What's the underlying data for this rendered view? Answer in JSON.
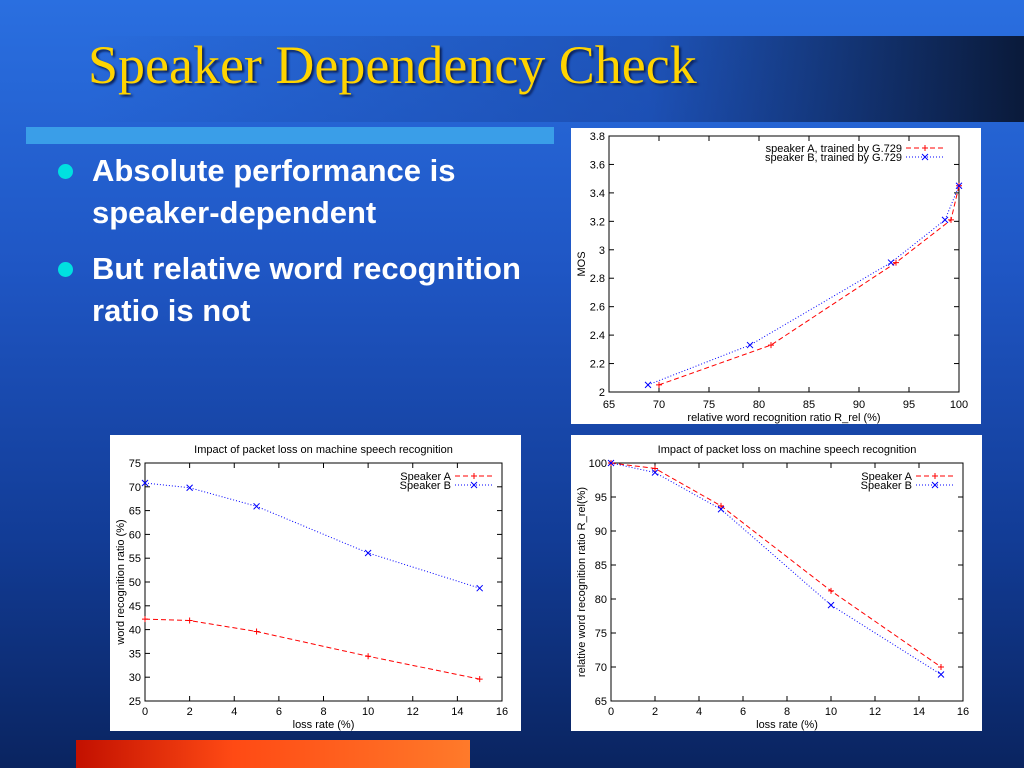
{
  "slide": {
    "title": "Speaker Dependency Check",
    "bullets": [
      "Absolute performance is speaker-dependent",
      "But relative word recognition ratio is not"
    ]
  },
  "colors": {
    "title": "#ffd400",
    "bullet_dot": "#00e0e0",
    "series_a": "#ff0000",
    "series_b": "#0000ff"
  },
  "chart_data": [
    {
      "type": "line",
      "title": "",
      "xlabel": "relative word recognition ratio R_rel (%)",
      "ylabel": "MOS",
      "xlim": [
        65,
        100
      ],
      "ylim": [
        2,
        3.8
      ],
      "xticks": [
        65,
        70,
        75,
        80,
        85,
        90,
        95,
        100
      ],
      "yticks": [
        2,
        2.2,
        2.4,
        2.6,
        2.8,
        3,
        3.2,
        3.4,
        3.6,
        3.8
      ],
      "grid": false,
      "legend_position": "top-right",
      "series": [
        {
          "name": "speaker A, trained by G.729",
          "color": "#ff0000",
          "marker": "+",
          "dash": "dashed",
          "points": [
            [
              70,
              2.05
            ],
            [
              81.2,
              2.33
            ],
            [
              93.7,
              2.91
            ],
            [
              99.2,
              3.21
            ],
            [
              100,
              3.45
            ]
          ]
        },
        {
          "name": "speaker B, trained by G.729",
          "color": "#0000ff",
          "marker": "x",
          "dash": "dotted",
          "points": [
            [
              68.9,
              2.05
            ],
            [
              79.1,
              2.33
            ],
            [
              93.2,
              2.91
            ],
            [
              98.6,
              3.21
            ],
            [
              100,
              3.45
            ]
          ]
        }
      ]
    },
    {
      "type": "line",
      "title": "Impact of packet loss on machine speech recognition",
      "xlabel": "loss rate (%)",
      "ylabel": "word recognition ratio (%)",
      "xlim": [
        0,
        16
      ],
      "ylim": [
        25,
        75
      ],
      "xticks": [
        0,
        2,
        4,
        6,
        8,
        10,
        12,
        14,
        16
      ],
      "yticks": [
        25,
        30,
        35,
        40,
        45,
        50,
        55,
        60,
        65,
        70,
        75
      ],
      "grid": false,
      "legend_position": "top-right",
      "series": [
        {
          "name": "Speaker A",
          "color": "#ff0000",
          "marker": "+",
          "dash": "dashed",
          "points": [
            [
              0,
              42.2
            ],
            [
              2,
              41.9
            ],
            [
              5,
              39.6
            ],
            [
              10,
              34.4
            ],
            [
              15,
              29.6
            ]
          ]
        },
        {
          "name": "Speaker B",
          "color": "#0000ff",
          "marker": "x",
          "dash": "dotted",
          "points": [
            [
              0,
              70.8
            ],
            [
              2,
              69.8
            ],
            [
              5,
              65.9
            ],
            [
              10,
              56.1
            ],
            [
              15,
              48.7
            ]
          ]
        }
      ]
    },
    {
      "type": "line",
      "title": "Impact of packet loss on machine speech recognition",
      "xlabel": "loss rate (%)",
      "ylabel": "relative word recognition ratio R_rel(%)",
      "xlim": [
        0,
        16
      ],
      "ylim": [
        65,
        100
      ],
      "xticks": [
        0,
        2,
        4,
        6,
        8,
        10,
        12,
        14,
        16
      ],
      "yticks": [
        65,
        70,
        75,
        80,
        85,
        90,
        95,
        100
      ],
      "grid": false,
      "legend_position": "top-right",
      "series": [
        {
          "name": "Speaker A",
          "color": "#ff0000",
          "marker": "+",
          "dash": "dashed",
          "points": [
            [
              0,
              100
            ],
            [
              2,
              99.2
            ],
            [
              5,
              93.7
            ],
            [
              10,
              81.2
            ],
            [
              15,
              70
            ]
          ]
        },
        {
          "name": "Speaker B",
          "color": "#0000ff",
          "marker": "x",
          "dash": "dotted",
          "points": [
            [
              0,
              100
            ],
            [
              2,
              98.6
            ],
            [
              5,
              93.2
            ],
            [
              10,
              79.1
            ],
            [
              15,
              68.9
            ]
          ]
        }
      ]
    }
  ]
}
